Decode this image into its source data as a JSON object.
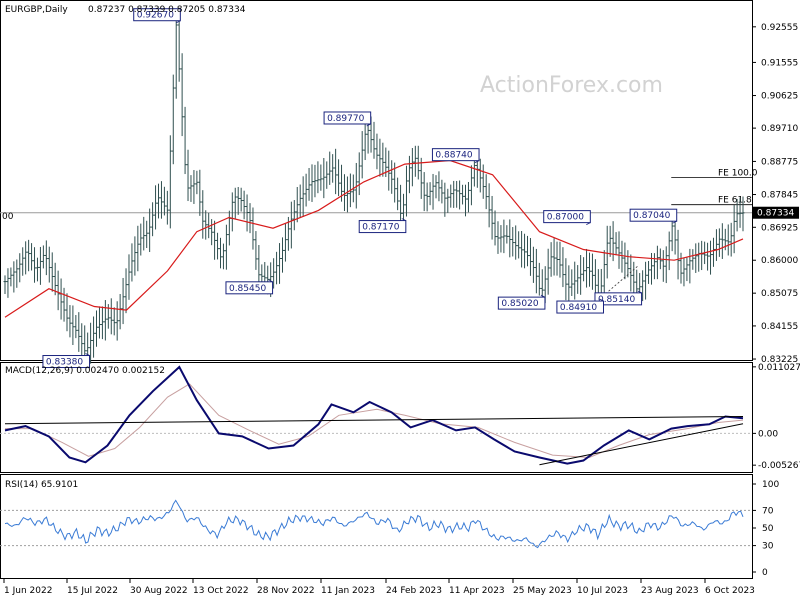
{
  "chart_data": [
    {
      "type": "candlestick",
      "title": "EURGBP,Daily",
      "ohlc_header": "0.87237 0.87339 0.87205 0.87334",
      "last_price": "0.87334",
      "left_edge_label": "00",
      "watermark": "ActionForex.com",
      "ylim": [
        0.8317,
        0.9328
      ],
      "y_ticks": [
        "0.92555",
        "0.91555",
        "0.90625",
        "0.89710",
        "0.88775",
        "0.87845",
        "0.86925",
        "0.86000",
        "0.85075",
        "0.84155",
        "0.83225"
      ],
      "x_ticks": [
        "1 Jun 2022",
        "15 Jul 2022",
        "30 Aug 2022",
        "13 Oct 2022",
        "28 Nov 2022",
        "11 Jan 2023",
        "24 Feb 2023",
        "11 Apr 2023",
        "25 May 2023",
        "10 Jul 2023",
        "23 Aug 2023",
        "6 Oct 2023"
      ],
      "price_path": [
        [
          "2022-06-01",
          0.854
        ],
        [
          "2022-06-10",
          0.858
        ],
        [
          "2022-06-16",
          0.863
        ],
        [
          "2022-06-22",
          0.857
        ],
        [
          "2022-06-28",
          0.862
        ],
        [
          "2022-07-06",
          0.852
        ],
        [
          "2022-07-14",
          0.843
        ],
        [
          "2022-07-20",
          0.84
        ],
        [
          "2022-07-26",
          0.834
        ],
        [
          "2022-08-02",
          0.841
        ],
        [
          "2022-08-10",
          0.844
        ],
        [
          "2022-08-16",
          0.842
        ],
        [
          "2022-08-22",
          0.852
        ],
        [
          "2022-08-26",
          0.859
        ],
        [
          "2022-09-01",
          0.866
        ],
        [
          "2022-09-07",
          0.868
        ],
        [
          "2022-09-13",
          0.878
        ],
        [
          "2022-09-20",
          0.874
        ],
        [
          "2022-09-26",
          0.9267
        ],
        [
          "2022-10-03",
          0.88
        ],
        [
          "2022-10-10",
          0.882
        ],
        [
          "2022-10-14",
          0.871
        ],
        [
          "2022-10-20",
          0.868
        ],
        [
          "2022-10-27",
          0.86
        ],
        [
          "2022-11-04",
          0.878
        ],
        [
          "2022-11-09",
          0.877
        ],
        [
          "2022-11-15",
          0.872
        ],
        [
          "2022-11-21",
          0.856
        ],
        [
          "2022-11-28",
          0.8545
        ],
        [
          "2022-12-02",
          0.857
        ],
        [
          "2022-12-07",
          0.862
        ],
        [
          "2022-12-13",
          0.871
        ],
        [
          "2022-12-19",
          0.877
        ],
        [
          "2022-12-27",
          0.882
        ],
        [
          "2023-01-04",
          0.883
        ],
        [
          "2023-01-11",
          0.886
        ],
        [
          "2023-01-18",
          0.878
        ],
        [
          "2023-01-26",
          0.88
        ],
        [
          "2023-02-03",
          0.8977
        ],
        [
          "2023-02-09",
          0.89
        ],
        [
          "2023-02-15",
          0.887
        ],
        [
          "2023-02-21",
          0.882
        ],
        [
          "2023-02-27",
          0.8717
        ],
        [
          "2023-03-03",
          0.885
        ],
        [
          "2023-03-08",
          0.889
        ],
        [
          "2023-03-15",
          0.877
        ],
        [
          "2023-03-22",
          0.882
        ],
        [
          "2023-03-29",
          0.877
        ],
        [
          "2023-04-04",
          0.88
        ],
        [
          "2023-04-12",
          0.877
        ],
        [
          "2023-04-18",
          0.8874
        ],
        [
          "2023-04-25",
          0.879
        ],
        [
          "2023-05-02",
          0.866
        ],
        [
          "2023-05-09",
          0.867
        ],
        [
          "2023-05-16",
          0.864
        ],
        [
          "2023-05-23",
          0.862
        ],
        [
          "2023-05-29",
          0.857
        ],
        [
          "2023-06-02",
          0.8502
        ],
        [
          "2023-06-09",
          0.861
        ],
        [
          "2023-06-14",
          0.86
        ],
        [
          "2023-06-20",
          0.852
        ],
        [
          "2023-06-27",
          0.855
        ],
        [
          "2023-07-03",
          0.858
        ],
        [
          "2023-07-07",
          0.856
        ],
        [
          "2023-07-12",
          0.8491
        ],
        [
          "2023-07-18",
          0.867
        ],
        [
          "2023-07-24",
          0.863
        ],
        [
          "2023-07-31",
          0.858
        ],
        [
          "2023-08-07",
          0.8514
        ],
        [
          "2023-08-14",
          0.857
        ],
        [
          "2023-08-21",
          0.861
        ],
        [
          "2023-08-25",
          0.858
        ],
        [
          "2023-08-31",
          0.8704
        ],
        [
          "2023-09-05",
          0.856
        ],
        [
          "2023-09-12",
          0.86
        ],
        [
          "2023-09-18",
          0.862
        ],
        [
          "2023-09-25",
          0.861
        ],
        [
          "2023-10-02",
          0.866
        ],
        [
          "2023-10-09",
          0.865
        ],
        [
          "2023-10-13",
          0.873
        ],
        [
          "2023-10-18",
          0.8733
        ]
      ],
      "moving_average_path": [
        [
          "2022-06-01",
          0.844
        ],
        [
          "2022-07-01",
          0.852
        ],
        [
          "2022-08-01",
          0.847
        ],
        [
          "2022-08-23",
          0.846
        ],
        [
          "2022-09-20",
          0.857
        ],
        [
          "2022-10-10",
          0.868
        ],
        [
          "2022-11-01",
          0.872
        ],
        [
          "2022-12-01",
          0.869
        ],
        [
          "2023-01-01",
          0.874
        ],
        [
          "2023-02-01",
          0.882
        ],
        [
          "2023-03-01",
          0.887
        ],
        [
          "2023-04-01",
          0.888
        ],
        [
          "2023-04-30",
          0.884
        ],
        [
          "2023-06-01",
          0.868
        ],
        [
          "2023-07-01",
          0.863
        ],
        [
          "2023-08-01",
          0.861
        ],
        [
          "2023-09-01",
          0.86
        ],
        [
          "2023-10-01",
          0.863
        ],
        [
          "2023-10-18",
          0.866
        ]
      ],
      "swing_labels": [
        {
          "text": "0.92670",
          "date": "2022-09-26",
          "price": 0.9267
        },
        {
          "text": "0.89770",
          "date": "2023-02-03",
          "price": 0.8977
        },
        {
          "text": "0.88740",
          "date": "2023-04-18",
          "price": 0.8874
        },
        {
          "text": "0.87170",
          "date": "2023-02-27",
          "price": 0.8717
        },
        {
          "text": "0.87000",
          "date": "2023-07-03",
          "price": 0.87
        },
        {
          "text": "0.87040",
          "date": "2023-08-31",
          "price": 0.8704
        },
        {
          "text": "0.85450",
          "date": "2022-11-28",
          "price": 0.8545
        },
        {
          "text": "0.85140",
          "date": "2023-08-07",
          "price": 0.8514
        },
        {
          "text": "0.85020",
          "date": "2023-06-02",
          "price": 0.8502
        },
        {
          "text": "0.84910",
          "date": "2023-07-12",
          "price": 0.8491
        },
        {
          "text": "0.83380",
          "date": "2022-07-26",
          "price": 0.8338
        }
      ],
      "fib_levels": [
        {
          "label": "FE 100.0",
          "price": 0.8832
        },
        {
          "label": "FE 61.8",
          "price": 0.8756
        }
      ]
    },
    {
      "type": "line",
      "title": "MACD(12,26,9) 0.002470 0.002152",
      "ylim": [
        -0.0064,
        0.0115
      ],
      "y_ticks": [
        "0.011027",
        "0.00",
        "-0.005267"
      ],
      "series": [
        {
          "values": [
            [
              "2022-06-01",
              0.0005
            ],
            [
              "2022-06-15",
              0.0012
            ],
            [
              "2022-07-01",
              -0.0005
            ],
            [
              "2022-07-15",
              -0.004
            ],
            [
              "2022-07-26",
              -0.0048
            ],
            [
              "2022-08-10",
              -0.002
            ],
            [
              "2022-08-25",
              0.003
            ],
            [
              "2022-09-10",
              0.007
            ],
            [
              "2022-09-28",
              0.011
            ],
            [
              "2022-10-10",
              0.0055
            ],
            [
              "2022-10-25",
              0.0
            ],
            [
              "2022-11-10",
              -0.0005
            ],
            [
              "2022-11-28",
              -0.0025
            ],
            [
              "2022-12-15",
              -0.002
            ],
            [
              "2023-01-01",
              0.0015
            ],
            [
              "2023-01-10",
              0.0048
            ],
            [
              "2023-01-25",
              0.0035
            ],
            [
              "2023-02-05",
              0.0052
            ],
            [
              "2023-02-20",
              0.0035
            ],
            [
              "2023-03-05",
              0.001
            ],
            [
              "2023-03-20",
              0.0022
            ],
            [
              "2023-04-05",
              0.0005
            ],
            [
              "2023-04-18",
              0.001
            ],
            [
              "2023-05-01",
              -0.001
            ],
            [
              "2023-05-15",
              -0.003
            ],
            [
              "2023-06-01",
              -0.004
            ],
            [
              "2023-06-20",
              -0.005
            ],
            [
              "2023-07-01",
              -0.0045
            ],
            [
              "2023-07-15",
              -0.002
            ],
            [
              "2023-08-01",
              0.0005
            ],
            [
              "2023-08-15",
              -0.001
            ],
            [
              "2023-08-30",
              0.0008
            ],
            [
              "2023-09-10",
              0.0012
            ],
            [
              "2023-09-25",
              0.0015
            ],
            [
              "2023-10-06",
              0.0028
            ],
            [
              "2023-10-18",
              0.0025
            ]
          ]
        },
        {
          "values": [
            [
              "2022-06-01",
              0.0008
            ],
            [
              "2022-06-20",
              0.0008
            ],
            [
              "2022-07-10",
              -0.0015
            ],
            [
              "2022-07-28",
              -0.0038
            ],
            [
              "2022-08-15",
              -0.0025
            ],
            [
              "2022-09-01",
              0.001
            ],
            [
              "2022-09-20",
              0.006
            ],
            [
              "2022-10-05",
              0.0082
            ],
            [
              "2022-10-25",
              0.003
            ],
            [
              "2022-11-15",
              0.0005
            ],
            [
              "2022-12-05",
              -0.0018
            ],
            [
              "2022-12-25",
              -0.0005
            ],
            [
              "2023-01-15",
              0.003
            ],
            [
              "2023-02-10",
              0.004
            ],
            [
              "2023-03-01",
              0.003
            ],
            [
              "2023-03-25",
              0.0016
            ],
            [
              "2023-04-20",
              0.001
            ],
            [
              "2023-05-15",
              -0.0015
            ],
            [
              "2023-06-10",
              -0.0036
            ],
            [
              "2023-07-05",
              -0.004
            ],
            [
              "2023-07-25",
              -0.002
            ],
            [
              "2023-08-15",
              -0.0002
            ],
            [
              "2023-09-10",
              0.0008
            ],
            [
              "2023-10-01",
              0.0018
            ],
            [
              "2023-10-18",
              0.0022
            ]
          ]
        }
      ],
      "trendlines": [
        [
          [
            "2022-06-01",
            0.0016
          ],
          [
            "2023-10-18",
            0.0028
          ]
        ],
        [
          [
            "2023-06-01",
            -0.0052
          ],
          [
            "2023-10-18",
            0.0016
          ]
        ]
      ]
    },
    {
      "type": "line",
      "title": "RSI(14) 65.9101",
      "ylim": [
        0,
        100
      ],
      "y_ticks": [
        "100",
        "70",
        "50",
        "30",
        "0"
      ],
      "series": [
        {
          "values": [
            [
              "2022-06-01",
              55
            ],
            [
              "2022-06-08",
              52
            ],
            [
              "2022-06-15",
              62
            ],
            [
              "2022-06-22",
              55
            ],
            [
              "2022-06-29",
              60
            ],
            [
              "2022-07-06",
              48
            ],
            [
              "2022-07-13",
              40
            ],
            [
              "2022-07-20",
              45
            ],
            [
              "2022-07-26",
              35
            ],
            [
              "2022-08-03",
              48
            ],
            [
              "2022-08-10",
              44
            ],
            [
              "2022-08-17",
              50
            ],
            [
              "2022-08-24",
              60
            ],
            [
              "2022-08-31",
              57
            ],
            [
              "2022-09-07",
              62
            ],
            [
              "2022-09-14",
              60
            ],
            [
              "2022-09-21",
              68
            ],
            [
              "2022-09-26",
              82
            ],
            [
              "2022-10-03",
              58
            ],
            [
              "2022-10-10",
              62
            ],
            [
              "2022-10-17",
              48
            ],
            [
              "2022-10-24",
              42
            ],
            [
              "2022-10-31",
              58
            ],
            [
              "2022-11-07",
              60
            ],
            [
              "2022-11-14",
              52
            ],
            [
              "2022-11-21",
              42
            ],
            [
              "2022-11-28",
              40
            ],
            [
              "2022-12-05",
              48
            ],
            [
              "2022-12-12",
              58
            ],
            [
              "2022-12-19",
              62
            ],
            [
              "2022-12-27",
              60
            ],
            [
              "2023-01-04",
              55
            ],
            [
              "2023-01-11",
              62
            ],
            [
              "2023-01-18",
              52
            ],
            [
              "2023-01-25",
              58
            ],
            [
              "2023-02-03",
              67
            ],
            [
              "2023-02-10",
              55
            ],
            [
              "2023-02-17",
              60
            ],
            [
              "2023-02-24",
              46
            ],
            [
              "2023-03-03",
              58
            ],
            [
              "2023-03-10",
              62
            ],
            [
              "2023-03-17",
              50
            ],
            [
              "2023-03-24",
              55
            ],
            [
              "2023-03-31",
              48
            ],
            [
              "2023-04-07",
              52
            ],
            [
              "2023-04-14",
              50
            ],
            [
              "2023-04-18",
              60
            ],
            [
              "2023-04-25",
              48
            ],
            [
              "2023-05-02",
              38
            ],
            [
              "2023-05-09",
              40
            ],
            [
              "2023-05-16",
              35
            ],
            [
              "2023-05-23",
              38
            ],
            [
              "2023-05-30",
              28
            ],
            [
              "2023-06-06",
              38
            ],
            [
              "2023-06-13",
              45
            ],
            [
              "2023-06-20",
              37
            ],
            [
              "2023-06-27",
              48
            ],
            [
              "2023-07-04",
              52
            ],
            [
              "2023-07-11",
              42
            ],
            [
              "2023-07-18",
              60
            ],
            [
              "2023-07-25",
              52
            ],
            [
              "2023-08-01",
              54
            ],
            [
              "2023-08-08",
              45
            ],
            [
              "2023-08-15",
              55
            ],
            [
              "2023-08-22",
              50
            ],
            [
              "2023-08-31",
              65
            ],
            [
              "2023-09-07",
              52
            ],
            [
              "2023-09-14",
              56
            ],
            [
              "2023-09-21",
              48
            ],
            [
              "2023-09-28",
              58
            ],
            [
              "2023-10-05",
              55
            ],
            [
              "2023-10-12",
              68
            ],
            [
              "2023-10-18",
              66
            ]
          ]
        }
      ]
    }
  ]
}
